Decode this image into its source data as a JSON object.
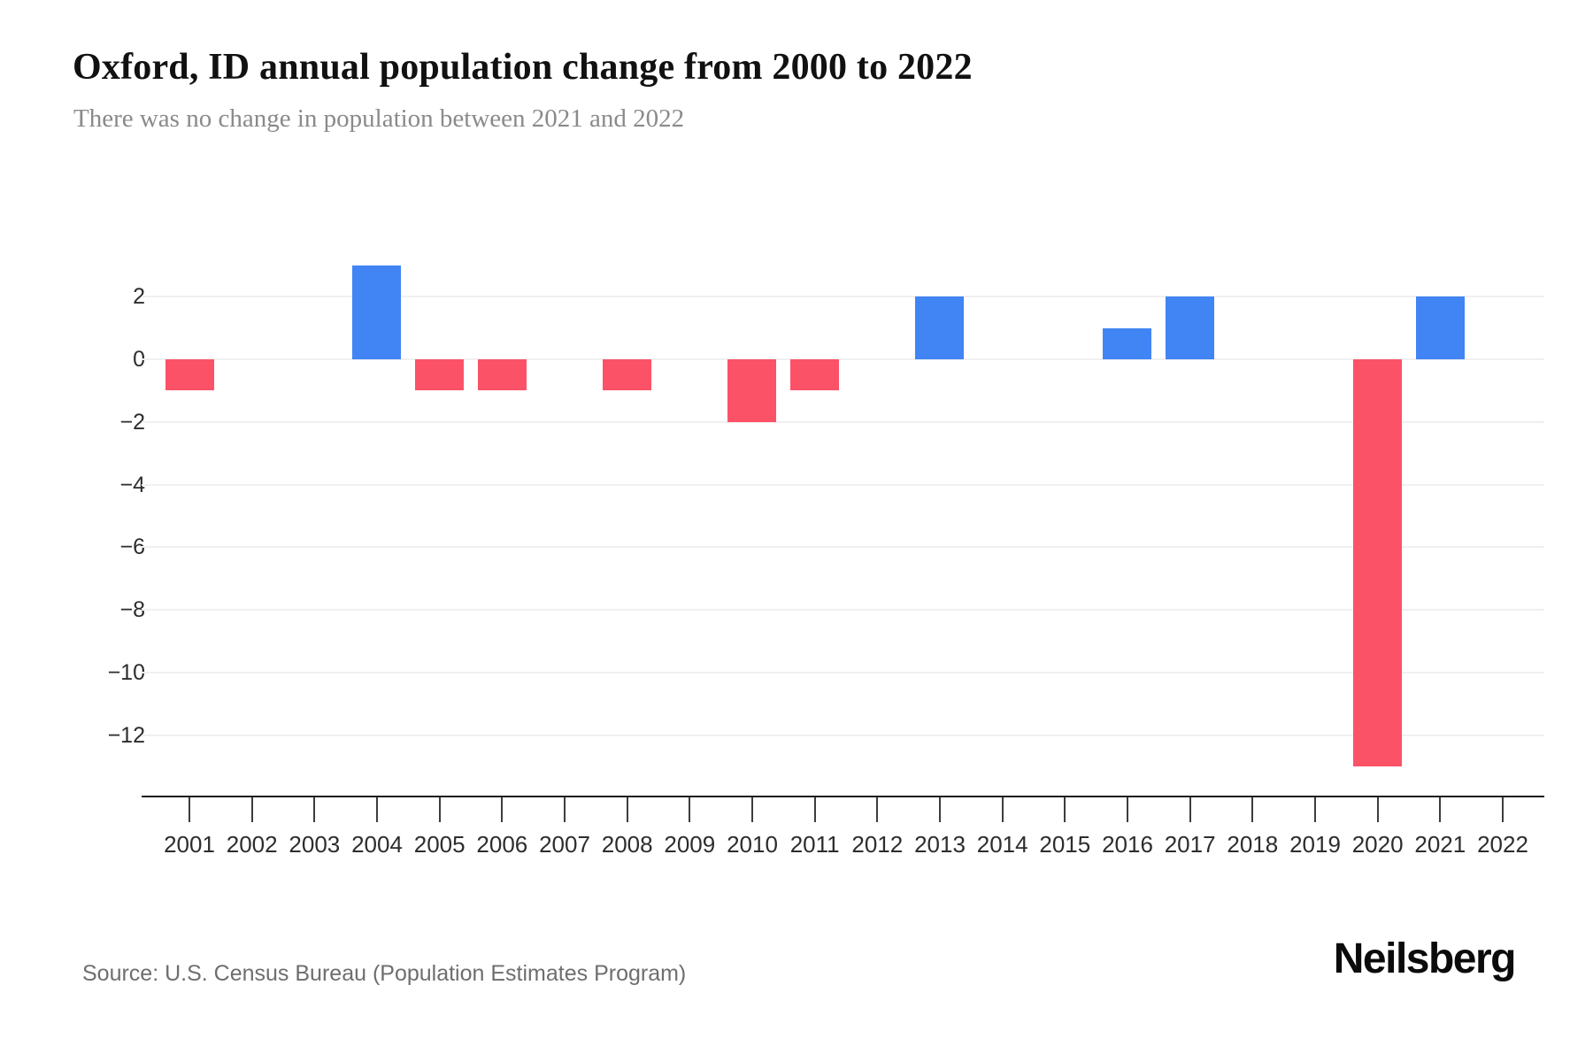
{
  "header": {
    "title": "Oxford, ID annual population change from 2000 to 2022",
    "subtitle": "There was no change in population between 2021 and 2022"
  },
  "footer": {
    "source": "Source: U.S. Census Bureau (Population Estimates Program)",
    "brand": "Neilsberg"
  },
  "chart_data": {
    "type": "bar",
    "title": "Oxford, ID annual population change from 2000 to 2022",
    "subtitle": "There was no change in population between 2021 and 2022",
    "categories": [
      "2001",
      "2002",
      "2003",
      "2004",
      "2005",
      "2006",
      "2007",
      "2008",
      "2009",
      "2010",
      "2011",
      "2012",
      "2013",
      "2014",
      "2015",
      "2016",
      "2017",
      "2018",
      "2019",
      "2020",
      "2021",
      "2022"
    ],
    "values": [
      -1,
      0,
      0,
      3,
      -1,
      -1,
      0,
      -1,
      0,
      -2,
      -1,
      0,
      2,
      0,
      0,
      1,
      2,
      0,
      0,
      -13,
      2,
      0
    ],
    "positive_color": "#4184f4",
    "negative_color": "#fc5268",
    "yticks": [
      2,
      0,
      -2,
      -4,
      -6,
      -8,
      -10,
      -12
    ],
    "ylim": [
      -14,
      4.3
    ],
    "grid": "horizontal",
    "legend": "none",
    "xlabel": "",
    "ylabel": ""
  }
}
